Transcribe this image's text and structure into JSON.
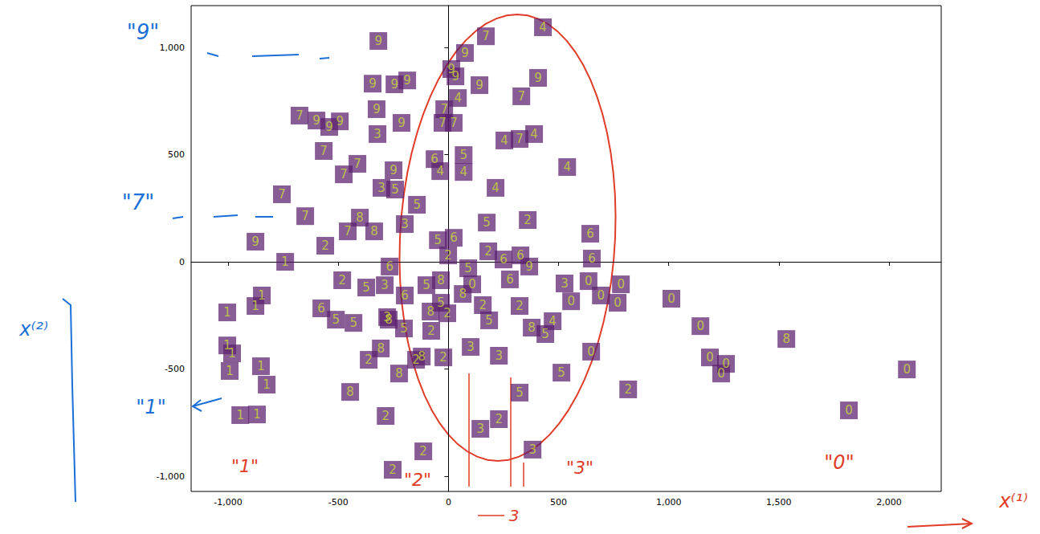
{
  "chart_data": {
    "type": "scatter",
    "xlim": [
      -1168,
      2237
    ],
    "ylim": [
      -1071,
      1195
    ],
    "xticks": [
      -1000,
      -500,
      0,
      500,
      1000,
      1500,
      2000
    ],
    "yticks": [
      -1000,
      -500,
      0,
      500,
      1000
    ],
    "grid": false,
    "color": "#5a1f6e",
    "x": [
      -318,
      170,
      429,
      75,
      13,
      32,
      -344,
      -245,
      -187,
      141,
      407,
      331,
      43,
      -326,
      -19,
      -27,
      24,
      -213,
      -676,
      -599,
      -541,
      -493,
      -322,
      254,
      323,
      389,
      -566,
      -413,
      -475,
      -249,
      -63,
      -37,
      69,
      69,
      539,
      -304,
      -242,
      -143,
      214,
      -756,
      -650,
      -402,
      -457,
      -337,
      -198,
      174,
      360,
      -876,
      -559,
      -741,
      -48,
      24,
      -1,
      181,
      250,
      327,
      367,
      644,
      651,
      -267,
      90,
      -482,
      -373,
      -289,
      -198,
      -34,
      -100,
      108,
      279,
      527,
      636,
      783,
      692,
      557,
      768,
      1012,
      -847,
      -1004,
      -876,
      -577,
      65,
      -34,
      156,
      323,
      -511,
      -431,
      -278,
      -271,
      -202,
      -81,
      -5,
      -78,
      185,
      378,
      473,
      440,
      -1004,
      -982,
      -993,
      -851,
      -825,
      101,
      229,
      648,
      -307,
      -362,
      -147,
      -121,
      -23,
      -224,
      1144,
      1187,
      1260,
      1238,
      1534,
      2081,
      1818,
      513,
      323,
      816,
      -446,
      -945,
      -869,
      -285,
      145,
      229,
      -114,
      382,
      -253
    ],
    "values": [
      1030,
      1052,
      1094,
      974,
      899,
      865,
      831,
      828,
      846,
      824,
      858,
      772,
      764,
      712,
      712,
      648,
      648,
      648,
      682,
      659,
      629,
      655,
      596,
      566,
      573,
      596,
      517,
      457,
      408,
      427,
      479,
      423,
      498,
      419,
      442,
      345,
      337,
      266,
      345,
      315,
      213,
      206,
      142,
      142,
      176,
      183,
      195,
      94,
      75,
      0,
      101,
      112,
      30,
      49,
      11,
      30,
      -22,
      131,
      15,
      -22,
      -30,
      -86,
      -120,
      -109,
      -157,
      -86,
      -109,
      -105,
      -82,
      -101,
      -90,
      -105,
      -157,
      -184,
      -191,
      -172,
      -157,
      -236,
      -206,
      -217,
      -150,
      -191,
      -202,
      -206,
      -270,
      -285,
      -258,
      -270,
      -311,
      -232,
      -240,
      -322,
      -273,
      -307,
      -277,
      -337,
      -390,
      -427,
      -509,
      -487,
      -573,
      -397,
      -438,
      -419,
      -404,
      -457,
      -457,
      -442,
      -446,
      -521,
      -300,
      -446,
      -476,
      -521,
      -360,
      -502,
      -693,
      -517,
      -610,
      -595,
      -607,
      -715,
      -712,
      -719,
      -779,
      -734,
      -884,
      -876,
      -970
    ],
    "point_labels": [
      "9",
      "7",
      "4",
      "9",
      "9",
      "9",
      "9",
      "9",
      "9",
      "9",
      "9",
      "7",
      "4",
      "9",
      "7",
      "7",
      "7",
      "9",
      "7",
      "9",
      "9",
      "9",
      "3",
      "4",
      "7",
      "4",
      "7",
      "7",
      "7",
      "9",
      "6",
      "4",
      "5",
      "4",
      "4",
      "3",
      "5",
      "5",
      "4",
      "7",
      "7",
      "8",
      "7",
      "8",
      "3",
      "5",
      "2",
      "9",
      "2",
      "1",
      "5",
      "6",
      "2",
      "2",
      "6",
      "6",
      "9",
      "6",
      "6",
      "6",
      "5",
      "2",
      "5",
      "3",
      "6",
      "8",
      "5",
      "0",
      "6",
      "3",
      "0",
      "0",
      "0",
      "0",
      "0",
      "0",
      "1",
      "1",
      "1",
      "6",
      "8",
      "5",
      "2",
      "2",
      "5",
      "5",
      "3",
      "8",
      "5",
      "8",
      "2",
      "2",
      "5",
      "8",
      "4",
      "5",
      "1",
      "1",
      "1",
      "1",
      "1",
      "3",
      "3",
      "0",
      "8",
      "2",
      "2",
      "8",
      "2",
      "8",
      "0",
      "0",
      "0",
      "0",
      "8",
      "0",
      "0",
      "5",
      "5",
      "2",
      "8",
      "1",
      "1",
      "2",
      "3",
      "2",
      "2",
      "3",
      "2"
    ],
    "annotations": [
      "\"9\"",
      "\"7\"",
      "\"1\"",
      "x⁽²⁾",
      "\"1\"",
      "\"2\"",
      "\"3\"",
      "\"0\"",
      "3",
      "x⁽¹⁾"
    ]
  }
}
